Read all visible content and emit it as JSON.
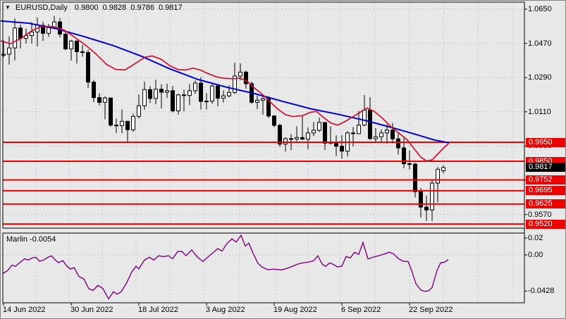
{
  "title": {
    "symbol": "EURUSD,Daily",
    "ohlc": "0.9800 0.9828 0.9786 0.9817"
  },
  "colors": {
    "bg": "#e8e8e8",
    "frame": "#000000",
    "grid": "#c6c6c6",
    "bull": "#ffffff",
    "bear": "#000000",
    "wick": "#000000",
    "ma_blue": "#0000cc",
    "ma_red": "#cc1030",
    "level_line": "#ef0000",
    "level_text": "#ffffff",
    "current_box": "#000000",
    "current_text": "#ffffff",
    "indicator_line": "#800080",
    "text": "#000000"
  },
  "chart_data": {
    "type": "candlestick",
    "symbol": "EURUSD",
    "timeframe": "Daily",
    "current": {
      "open": "0.9800",
      "high": "0.9828",
      "low": "0.9786",
      "close": "0.9817"
    },
    "price_axis": {
      "labels": [
        {
          "text": "1.0650",
          "price": 1.065,
          "hidden": false
        },
        {
          "text": "1.0470",
          "price": 1.047,
          "hidden": false
        },
        {
          "text": "1.0290",
          "price": 1.029,
          "hidden": false
        },
        {
          "text": "1.0110",
          "price": 1.011,
          "hidden": false
        },
        {
          "text": "0.9930",
          "price": 0.993,
          "hidden": true
        },
        {
          "text": "0.9750",
          "price": 0.975,
          "hidden": true
        },
        {
          "text": "0.9570",
          "price": 0.957,
          "hidden": false
        }
      ]
    },
    "levels": [
      {
        "text": "0.9950",
        "price": 0.995
      },
      {
        "text": "0.9850",
        "price": 0.985
      },
      {
        "text": "0.9752",
        "price": 0.9752
      },
      {
        "text": "0.9695",
        "price": 0.9695
      },
      {
        "text": "0.9625",
        "price": 0.9625
      },
      {
        "text": "0.9520",
        "price": 0.952
      }
    ],
    "current_price_label": {
      "text": "0.9817",
      "price": 0.9817
    },
    "time_axis": {
      "labels": [
        {
          "text": "14 Jun 2022",
          "candle_index": 0
        },
        {
          "text": "30 Jun 2022",
          "candle_index": 12
        },
        {
          "text": "18 Jul 2022",
          "candle_index": 24
        },
        {
          "text": "3 Aug 2022",
          "candle_index": 36
        },
        {
          "text": "19 Aug 2022",
          "candle_index": 48
        },
        {
          "text": "6 Sep 2022",
          "candle_index": 60
        },
        {
          "text": "22 Sep 2022",
          "candle_index": 72
        }
      ]
    },
    "candles": [
      [
        1.0408,
        1.0485,
        1.0397,
        1.0413
      ],
      [
        1.0413,
        1.0507,
        1.0359,
        1.0446
      ],
      [
        1.0446,
        1.0601,
        1.0381,
        1.0551
      ],
      [
        1.0551,
        1.0568,
        1.0443,
        1.0496
      ],
      [
        1.0496,
        1.0547,
        1.047,
        1.0511
      ],
      [
        1.0511,
        1.0582,
        1.0469,
        1.053
      ],
      [
        1.053,
        1.0606,
        1.0454,
        1.0565
      ],
      [
        1.0565,
        1.0584,
        1.0482,
        1.0523
      ],
      [
        1.0523,
        1.0572,
        1.0504,
        1.0553
      ],
      [
        1.0553,
        1.0615,
        1.0547,
        1.0583
      ],
      [
        1.0583,
        1.0603,
        1.0501,
        1.0519
      ],
      [
        1.0519,
        1.0535,
        1.0434,
        1.0441
      ],
      [
        1.0441,
        1.0489,
        1.038,
        1.0482
      ],
      [
        1.0482,
        1.0486,
        1.0364,
        1.0426
      ],
      [
        1.0426,
        1.0462,
        1.04,
        1.0422
      ],
      [
        1.0422,
        1.0437,
        1.0235,
        1.0266
      ],
      [
        1.0266,
        1.0278,
        1.0161,
        1.0185
      ],
      [
        1.0185,
        1.0209,
        1.0144,
        1.016
      ],
      [
        1.016,
        1.0192,
        1.0071,
        1.0183
      ],
      [
        1.0183,
        1.0185,
        1.0032,
        1.004
      ],
      [
        1.004,
        1.0075,
        0.9999,
        1.0037
      ],
      [
        1.0037,
        1.0122,
        0.9998,
        1.006
      ],
      [
        1.006,
        1.0063,
        0.9952,
        1.0016
      ],
      [
        1.0016,
        1.0101,
        1.0005,
        1.0086
      ],
      [
        1.0086,
        1.0202,
        1.0075,
        1.0142
      ],
      [
        1.0142,
        1.0269,
        1.0121,
        1.0227
      ],
      [
        1.0227,
        1.0246,
        1.0156,
        1.018
      ],
      [
        1.018,
        1.0279,
        1.0151,
        1.0229
      ],
      [
        1.0229,
        1.0254,
        1.0128,
        1.0213
      ],
      [
        1.0213,
        1.0258,
        1.0183,
        1.0221
      ],
      [
        1.0221,
        1.0246,
        1.0107,
        1.0115
      ],
      [
        1.0115,
        1.0206,
        1.0096,
        1.0199
      ],
      [
        1.0199,
        1.0227,
        1.0113,
        1.0196
      ],
      [
        1.0196,
        1.0255,
        1.0145,
        1.0221
      ],
      [
        1.0221,
        1.0275,
        1.0204,
        1.0261
      ],
      [
        1.0261,
        1.0292,
        1.0122,
        1.0165
      ],
      [
        1.0165,
        1.0209,
        1.0122,
        1.0166
      ],
      [
        1.0166,
        1.0255,
        1.0152,
        1.0246
      ],
      [
        1.0246,
        1.0252,
        1.014,
        1.0182
      ],
      [
        1.0182,
        1.0222,
        1.0159,
        1.0194
      ],
      [
        1.0194,
        1.025,
        1.0186,
        1.0212
      ],
      [
        1.0212,
        1.0368,
        1.0203,
        1.0298
      ],
      [
        1.0298,
        1.0365,
        1.0277,
        1.0319
      ],
      [
        1.0319,
        1.0327,
        1.0232,
        1.0258
      ],
      [
        1.0258,
        1.0269,
        1.0153,
        1.016
      ],
      [
        1.016,
        1.0196,
        1.0124,
        1.0171
      ],
      [
        1.0171,
        1.0191,
        1.0095,
        1.0179
      ],
      [
        1.0179,
        1.0192,
        1.0078,
        1.0088
      ],
      [
        1.0088,
        1.0093,
        1.0029,
        1.0039
      ],
      [
        1.0039,
        1.0047,
        0.9926,
        0.994
      ],
      [
        0.994,
        0.9976,
        0.9901,
        0.9969
      ],
      [
        0.9969,
        0.9993,
        0.9909,
        0.9967
      ],
      [
        0.9967,
        1.0034,
        0.9955,
        0.9975
      ],
      [
        0.9975,
        1.0091,
        0.9963,
        0.9966
      ],
      [
        0.9966,
        1.0028,
        0.9913,
        0.9999
      ],
      [
        0.9999,
        1.0056,
        0.9982,
        1.0013
      ],
      [
        1.0013,
        1.008,
        1.0004,
        1.0054
      ],
      [
        1.0054,
        1.0057,
        0.9909,
        0.9945
      ],
      [
        0.9945,
        1.0034,
        0.9938,
        0.9952
      ],
      [
        0.9952,
        0.9986,
        0.9877,
        0.9929
      ],
      [
        0.9929,
        0.9988,
        0.9863,
        0.9903
      ],
      [
        0.9903,
        1.0009,
        0.9875,
        0.9999
      ],
      [
        0.9999,
        1.003,
        0.9928,
        0.9995
      ],
      [
        0.9995,
        1.0114,
        0.9992,
        1.004
      ],
      [
        1.004,
        1.0198,
        1.0034,
        1.0119
      ],
      [
        1.0119,
        1.0187,
        0.9963,
        0.9969
      ],
      [
        0.9969,
        1.0024,
        0.9953,
        0.9979
      ],
      [
        0.9979,
        1.0018,
        0.9954,
        0.9999
      ],
      [
        0.9999,
        1.0045,
        0.9943,
        1.0014
      ],
      [
        1.0014,
        1.0051,
        0.9944,
        0.9968
      ],
      [
        0.9968,
        1.0,
        0.9885,
        0.992
      ],
      [
        0.992,
        0.9975,
        0.9813,
        0.9837
      ],
      [
        0.9837,
        0.9907,
        0.9807,
        0.9835
      ],
      [
        0.9835,
        0.9842,
        0.966,
        0.969
      ],
      [
        0.969,
        0.9709,
        0.9554,
        0.9609
      ],
      [
        0.9609,
        0.967,
        0.9536,
        0.9594
      ],
      [
        0.9594,
        0.9752,
        0.9536,
        0.9735
      ],
      [
        0.9735,
        0.982,
        0.9634,
        0.9808
      ],
      [
        0.98,
        0.9828,
        0.9786,
        0.9817
      ]
    ],
    "ma_blue": [
      [
        0,
        1.0588
      ],
      [
        40,
        1.0576
      ],
      [
        80,
        1.0546
      ],
      [
        120,
        1.0504
      ],
      [
        160,
        1.0458
      ],
      [
        200,
        1.0402
      ],
      [
        240,
        1.0336
      ],
      [
        280,
        1.028
      ],
      [
        320,
        1.024
      ],
      [
        360,
        1.0206
      ],
      [
        400,
        1.0165
      ],
      [
        440,
        1.0126
      ],
      [
        480,
        1.0096
      ],
      [
        520,
        1.0062
      ],
      [
        560,
        1.0022
      ],
      [
        590,
        0.999
      ],
      [
        615,
        0.9962
      ],
      [
        636,
        0.9947
      ]
    ],
    "ma_red": [
      [
        0,
        1.0483
      ],
      [
        14,
        1.0468
      ],
      [
        28,
        1.0495
      ],
      [
        45,
        1.0538
      ],
      [
        58,
        1.056
      ],
      [
        75,
        1.0558
      ],
      [
        90,
        1.054
      ],
      [
        105,
        1.0502
      ],
      [
        120,
        1.0462
      ],
      [
        135,
        1.0415
      ],
      [
        150,
        1.036
      ],
      [
        163,
        1.0333
      ],
      [
        176,
        1.033
      ],
      [
        190,
        1.0362
      ],
      [
        205,
        1.0398
      ],
      [
        215,
        1.0404
      ],
      [
        228,
        1.0386
      ],
      [
        240,
        1.0352
      ],
      [
        252,
        1.0332
      ],
      [
        262,
        1.033
      ],
      [
        273,
        1.034
      ],
      [
        283,
        1.033
      ],
      [
        295,
        1.031
      ],
      [
        307,
        1.0293
      ],
      [
        318,
        1.0286
      ],
      [
        330,
        1.0284
      ],
      [
        340,
        1.0287
      ],
      [
        350,
        1.027
      ],
      [
        360,
        1.0235
      ],
      [
        370,
        1.0206
      ],
      [
        380,
        1.017
      ],
      [
        392,
        1.0128
      ],
      [
        404,
        1.0095
      ],
      [
        415,
        1.0085
      ],
      [
        428,
        1.009
      ],
      [
        440,
        1.0108
      ],
      [
        448,
        1.0112
      ],
      [
        458,
        1.008
      ],
      [
        468,
        1.0052
      ],
      [
        478,
        1.004
      ],
      [
        488,
        1.0058
      ],
      [
        500,
        1.0085
      ],
      [
        510,
        1.0108
      ],
      [
        520,
        1.013
      ],
      [
        530,
        1.0112
      ],
      [
        542,
        1.0075
      ],
      [
        554,
        1.003
      ],
      [
        566,
        0.9995
      ],
      [
        576,
        0.9965
      ],
      [
        586,
        0.9918
      ],
      [
        596,
        0.9872
      ],
      [
        604,
        0.9852
      ],
      [
        612,
        0.9857
      ],
      [
        620,
        0.9888
      ],
      [
        628,
        0.9918
      ],
      [
        636,
        0.9946
      ]
    ],
    "indicator": {
      "name": "Marlin",
      "value": "-0.0054",
      "axis_labels": [
        {
          "text": "0.02",
          "value": 0.02
        },
        {
          "text": "0.00",
          "value": 0.0
        },
        {
          "text": "-0.0428",
          "value": -0.0428
        }
      ],
      "line": [
        [
          3,
          -0.022
        ],
        [
          10,
          -0.0185
        ],
        [
          16,
          -0.012
        ],
        [
          21,
          -0.0135
        ],
        [
          28,
          -0.0085
        ],
        [
          34,
          -0.0045
        ],
        [
          39,
          -0.006
        ],
        [
          45,
          -0.0035
        ],
        [
          50,
          -0.0028
        ],
        [
          55,
          -0.0075
        ],
        [
          61,
          -0.006
        ],
        [
          67,
          -0.0028
        ],
        [
          72,
          -0.001
        ],
        [
          77,
          -0.0058
        ],
        [
          82,
          -0.0092
        ],
        [
          88,
          -0.0068
        ],
        [
          94,
          -0.0133
        ],
        [
          99,
          -0.0168
        ],
        [
          104,
          -0.015
        ],
        [
          111,
          -0.0255
        ],
        [
          118,
          -0.0285
        ],
        [
          125,
          -0.04
        ],
        [
          131,
          -0.042
        ],
        [
          138,
          -0.036
        ],
        [
          145,
          -0.0398
        ],
        [
          153,
          -0.052
        ],
        [
          160,
          -0.0435
        ],
        [
          165,
          -0.0465
        ],
        [
          171,
          -0.0435
        ],
        [
          179,
          -0.0325
        ],
        [
          186,
          -0.02
        ],
        [
          192,
          -0.0135
        ],
        [
          196,
          -0.0165
        ],
        [
          204,
          -0.006
        ],
        [
          211,
          -0.0028
        ],
        [
          217,
          -0.006
        ],
        [
          224,
          -0.001
        ],
        [
          231,
          -0.002
        ],
        [
          238,
          -0.001
        ],
        [
          244,
          -0.0045
        ],
        [
          251,
          0.004
        ],
        [
          257,
          0.0042
        ],
        [
          263,
          -0.0008
        ],
        [
          271,
          0.0058
        ],
        [
          279,
          -0.0025
        ],
        [
          287,
          -0.0078
        ],
        [
          294,
          -0.0025
        ],
        [
          301,
          0.0025
        ],
        [
          308,
          0.0075
        ],
        [
          314,
          0.0045
        ],
        [
          321,
          0.0135
        ],
        [
          328,
          0.019
        ],
        [
          334,
          0.0152
        ],
        [
          341,
          0.0232
        ],
        [
          347,
          0.0105
        ],
        [
          352,
          0.014
        ],
        [
          358,
          0.002
        ],
        [
          365,
          -0.01
        ],
        [
          371,
          -0.0145
        ],
        [
          379,
          -0.0175
        ],
        [
          388,
          -0.0168
        ],
        [
          398,
          -0.0178
        ],
        [
          406,
          -0.016
        ],
        [
          414,
          -0.0135
        ],
        [
          421,
          -0.011
        ],
        [
          429,
          -0.0093
        ],
        [
          437,
          -0.0085
        ],
        [
          444,
          -0.0068
        ],
        [
          450,
          -0.001
        ],
        [
          456,
          -0.0108
        ],
        [
          461,
          -0.0135
        ],
        [
          467,
          -0.0093
        ],
        [
          473,
          -0.0118
        ],
        [
          478,
          -0.0143
        ],
        [
          484,
          -0.0133
        ],
        [
          490,
          -0.002
        ],
        [
          496,
          -0.0035
        ],
        [
          502,
          0.003
        ],
        [
          508,
          0.0008
        ],
        [
          514,
          0.0148
        ],
        [
          521,
          -0.0048
        ],
        [
          528,
          -0.0028
        ],
        [
          536,
          -0.001
        ],
        [
          543,
          0.0008
        ],
        [
          551,
          0.0032
        ],
        [
          557,
          0.0015
        ],
        [
          564,
          -0.0042
        ],
        [
          571,
          -0.0075
        ],
        [
          578,
          -0.0078
        ],
        [
          583,
          -0.0185
        ],
        [
          589,
          -0.034
        ],
        [
          596,
          -0.0415
        ],
        [
          602,
          -0.0432
        ],
        [
          607,
          -0.0425
        ],
        [
          612,
          -0.0385
        ],
        [
          619,
          -0.0185
        ],
        [
          624,
          -0.0095
        ],
        [
          630,
          -0.0085
        ],
        [
          635,
          -0.0054
        ]
      ]
    }
  }
}
